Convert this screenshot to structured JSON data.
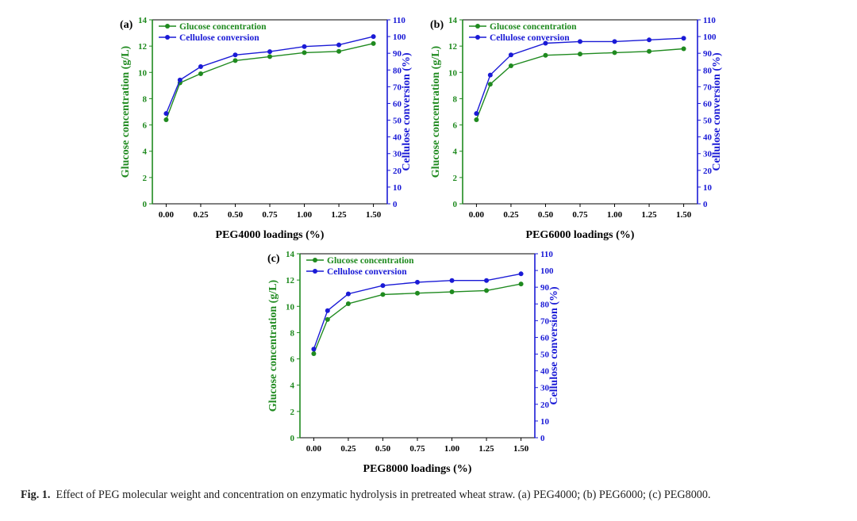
{
  "colors": {
    "glucose": "#1f8a1f",
    "cellulose": "#1a1ad6",
    "axis": "#000000"
  },
  "chart_data": [
    {
      "type": "line",
      "panel_label": "(a)",
      "xlabel": "PEG4000 loadings (%)",
      "ylabel_left": "Glucose concentration (g/L)",
      "ylabel_right": "Cellulose conversion (%)",
      "x": [
        0,
        0.1,
        0.25,
        0.5,
        0.75,
        1.0,
        1.25,
        1.5
      ],
      "x_ticks": [
        "0.00",
        "0.25",
        "0.50",
        "0.75",
        "1.00",
        "1.25",
        "1.50"
      ],
      "xlim": [
        -0.1,
        1.6
      ],
      "ylim_left": [
        0,
        14
      ],
      "ylim_right": [
        0,
        110
      ],
      "y_ticks_left": [
        "0",
        "2",
        "4",
        "6",
        "8",
        "10",
        "12",
        "14"
      ],
      "y_ticks_right": [
        "0",
        "10",
        "20",
        "30",
        "40",
        "50",
        "60",
        "70",
        "80",
        "90",
        "100",
        "110"
      ],
      "series": [
        {
          "name": "Glucose concentration",
          "axis": "left",
          "values": [
            6.4,
            9.2,
            9.9,
            10.9,
            11.2,
            11.5,
            11.6,
            12.2
          ]
        },
        {
          "name": "Cellulose conversion",
          "axis": "right",
          "values": [
            54,
            74,
            82,
            89,
            91,
            94,
            95,
            100
          ]
        }
      ]
    },
    {
      "type": "line",
      "panel_label": "(b)",
      "xlabel": "PEG6000 loadings (%)",
      "ylabel_left": "Glucose concentration (g/L)",
      "ylabel_right": "Cellulose conversion (%)",
      "x": [
        0,
        0.1,
        0.25,
        0.5,
        0.75,
        1.0,
        1.25,
        1.5
      ],
      "x_ticks": [
        "0.00",
        "0.25",
        "0.50",
        "0.75",
        "1.00",
        "1.25",
        "1.50"
      ],
      "xlim": [
        -0.1,
        1.6
      ],
      "ylim_left": [
        0,
        14
      ],
      "ylim_right": [
        0,
        110
      ],
      "y_ticks_left": [
        "0",
        "2",
        "4",
        "6",
        "8",
        "10",
        "12",
        "14"
      ],
      "y_ticks_right": [
        "0",
        "10",
        "20",
        "30",
        "40",
        "50",
        "60",
        "70",
        "80",
        "90",
        "100",
        "110"
      ],
      "series": [
        {
          "name": "Glucose concentration",
          "axis": "left",
          "values": [
            6.4,
            9.1,
            10.5,
            11.3,
            11.4,
            11.5,
            11.6,
            11.8
          ]
        },
        {
          "name": "Cellulose conversion",
          "axis": "right",
          "values": [
            54,
            77,
            89,
            96,
            97,
            97,
            98,
            99
          ]
        }
      ]
    },
    {
      "type": "line",
      "panel_label": "(c)",
      "xlabel": "PEG8000 loadings (%)",
      "ylabel_left": "Glucose concentration (g/L)",
      "ylabel_right": "Cellulose conversion (%)",
      "x": [
        0,
        0.1,
        0.25,
        0.5,
        0.75,
        1.0,
        1.25,
        1.5
      ],
      "x_ticks": [
        "0.00",
        "0.25",
        "0.50",
        "0.75",
        "1.00",
        "1.25",
        "1.50"
      ],
      "xlim": [
        -0.1,
        1.6
      ],
      "ylim_left": [
        0,
        14
      ],
      "ylim_right": [
        0,
        110
      ],
      "y_ticks_left": [
        "0",
        "2",
        "4",
        "6",
        "8",
        "10",
        "12",
        "14"
      ],
      "y_ticks_right": [
        "0",
        "10",
        "20",
        "30",
        "40",
        "50",
        "60",
        "70",
        "80",
        "90",
        "100",
        "110"
      ],
      "series": [
        {
          "name": "Glucose concentration",
          "axis": "left",
          "values": [
            6.4,
            9.0,
            10.2,
            10.9,
            11.0,
            11.1,
            11.2,
            11.7
          ]
        },
        {
          "name": "Cellulose conversion",
          "axis": "right",
          "values": [
            53,
            76,
            86,
            91,
            93,
            94,
            94,
            98
          ]
        }
      ]
    }
  ],
  "caption": {
    "label": "Fig. 1.",
    "text": "Effect of PEG molecular weight and concentration on enzymatic hydrolysis in pretreated wheat straw. (a) PEG4000; (b) PEG6000; (c) PEG8000."
  }
}
